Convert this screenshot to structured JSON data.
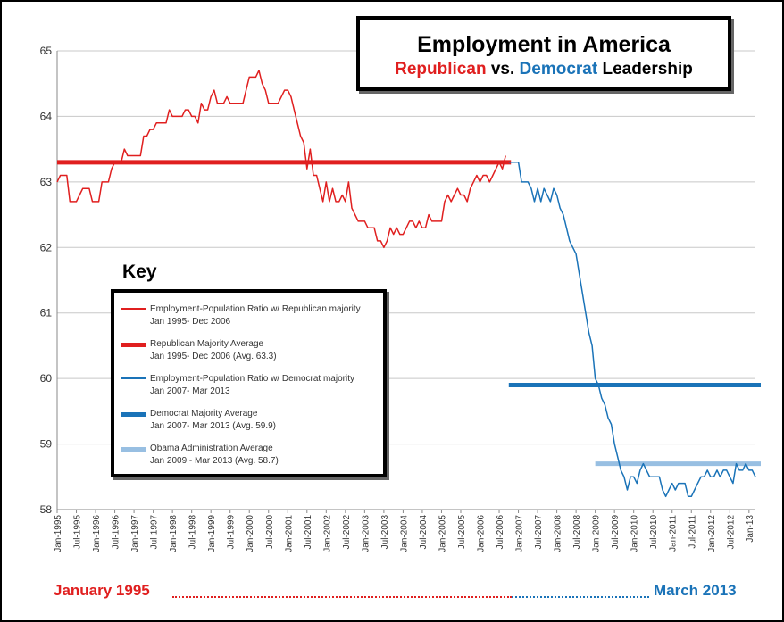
{
  "chart_data": {
    "type": "line",
    "title": "Employment in America",
    "subtitle": {
      "republican": "Republican",
      "vs": " vs. ",
      "democrat": "Democrat",
      "leadership": " Leadership"
    },
    "xlabel": "",
    "ylabel": "",
    "ylim": [
      58,
      65
    ],
    "grid": true,
    "y_ticks": [
      "58",
      "59",
      "60",
      "61",
      "62",
      "63",
      "64",
      "65"
    ],
    "x_tick_labels": [
      "Jan-1995",
      "Jul-1995",
      "Jan-1996",
      "Jul-1996",
      "Jan-1997",
      "Jul-1997",
      "Jan-1998",
      "Jul-1998",
      "Jan-1999",
      "Jul-1999",
      "Jan-2000",
      "Jul-2000",
      "Jan-2001",
      "Jul-2001",
      "Jan-2002",
      "Jul-2002",
      "Jan-2003",
      "Jul-2003",
      "Jan-2004",
      "Jul-2004",
      "Jan-2005",
      "Jul-2005",
      "Jan-2006",
      "Jul-2006",
      "Jan-2007",
      "Jul-2007",
      "Jan-2008",
      "Jul-2008",
      "Jan-2009",
      "Jul-2009",
      "Jan-2010",
      "Jul-2010",
      "Jan-2011",
      "Jul-2011",
      "Jan-2012",
      "Jul-2012",
      "Jan-13"
    ],
    "x_months_total": 219,
    "series": [
      {
        "name": "Employment-Population Ratio w/ Republican majority",
        "color": "#e01f1f",
        "kind": "line",
        "anchors": [
          [
            0,
            63.0
          ],
          [
            1,
            63.1
          ],
          [
            3,
            63.1
          ],
          [
            4,
            62.7
          ],
          [
            5,
            62.7
          ],
          [
            7,
            62.8
          ],
          [
            8,
            62.9
          ],
          [
            9,
            62.9
          ],
          [
            11,
            62.7
          ],
          [
            12,
            62.7
          ],
          [
            14,
            63.0
          ],
          [
            16,
            63.0
          ],
          [
            17,
            63.2
          ],
          [
            18,
            63.3
          ],
          [
            21,
            63.5
          ],
          [
            22,
            63.4
          ],
          [
            25,
            63.4
          ],
          [
            27,
            63.7
          ],
          [
            29,
            63.8
          ],
          [
            31,
            63.9
          ],
          [
            33,
            63.9
          ],
          [
            35,
            64.1
          ],
          [
            36,
            64.0
          ],
          [
            39,
            64.0
          ],
          [
            40,
            64.1
          ],
          [
            42,
            64.0
          ],
          [
            43,
            64.0
          ],
          [
            44,
            63.9
          ],
          [
            45,
            64.2
          ],
          [
            46,
            64.1
          ],
          [
            48,
            64.3
          ],
          [
            49,
            64.4
          ],
          [
            50,
            64.2
          ],
          [
            52,
            64.2
          ],
          [
            53,
            64.3
          ],
          [
            54,
            64.2
          ],
          [
            57,
            64.2
          ],
          [
            59,
            64.4
          ],
          [
            60,
            64.6
          ],
          [
            62,
            64.6
          ],
          [
            63,
            64.7
          ],
          [
            64,
            64.5
          ],
          [
            65,
            64.4
          ],
          [
            66,
            64.2
          ],
          [
            69,
            64.2
          ],
          [
            70,
            64.3
          ],
          [
            71,
            64.4
          ],
          [
            72,
            64.4
          ],
          [
            73,
            64.3
          ],
          [
            74,
            64.1
          ],
          [
            75,
            63.9
          ],
          [
            76,
            63.7
          ],
          [
            77,
            63.6
          ],
          [
            78,
            63.2
          ],
          [
            79,
            63.5
          ],
          [
            80,
            63.1
          ],
          [
            82,
            62.9
          ],
          [
            83,
            62.7
          ],
          [
            84,
            63.0
          ],
          [
            85,
            62.7
          ],
          [
            86,
            62.9
          ],
          [
            87,
            62.7
          ],
          [
            88,
            62.7
          ],
          [
            89,
            62.8
          ],
          [
            90,
            62.7
          ],
          [
            91,
            63.0
          ],
          [
            92,
            62.6
          ],
          [
            93,
            62.5
          ],
          [
            94,
            62.4
          ],
          [
            96,
            62.4
          ],
          [
            97,
            62.3
          ],
          [
            98,
            62.3
          ],
          [
            100,
            62.1
          ],
          [
            101,
            62.1
          ],
          [
            102,
            62.0
          ],
          [
            103,
            62.1
          ],
          [
            104,
            62.3
          ],
          [
            105,
            62.2
          ],
          [
            106,
            62.3
          ],
          [
            107,
            62.2
          ],
          [
            108,
            62.2
          ],
          [
            109,
            62.3
          ],
          [
            110,
            62.4
          ],
          [
            111,
            62.4
          ],
          [
            112,
            62.3
          ],
          [
            113,
            62.4
          ],
          [
            114,
            62.3
          ],
          [
            115,
            62.3
          ],
          [
            116,
            62.5
          ],
          [
            117,
            62.4
          ],
          [
            120,
            62.4
          ],
          [
            121,
            62.7
          ],
          [
            122,
            62.8
          ],
          [
            123,
            62.7
          ],
          [
            124,
            62.8
          ],
          [
            125,
            62.9
          ],
          [
            126,
            62.8
          ],
          [
            127,
            62.8
          ],
          [
            128,
            62.7
          ],
          [
            129,
            62.9
          ],
          [
            130,
            63.0
          ],
          [
            131,
            63.1
          ],
          [
            132,
            63.0
          ],
          [
            133,
            63.1
          ],
          [
            134,
            63.1
          ],
          [
            135,
            63.0
          ],
          [
            136,
            63.1
          ],
          [
            137,
            63.2
          ],
          [
            138,
            63.3
          ],
          [
            139,
            63.2
          ],
          [
            140,
            63.4
          ]
        ]
      },
      {
        "name": "Republican Majority Average",
        "color": "#e01f1f",
        "kind": "average",
        "value": 63.3,
        "x_range": [
          0,
          140
        ]
      },
      {
        "name": "Employment-Population Ratio w/ Democrat majority",
        "color": "#1a73b8",
        "kind": "line",
        "anchors": [
          [
            141,
            63.3
          ],
          [
            144,
            63.3
          ],
          [
            145,
            63.0
          ],
          [
            147,
            63.0
          ],
          [
            148,
            62.9
          ],
          [
            149,
            62.7
          ],
          [
            150,
            62.9
          ],
          [
            151,
            62.7
          ],
          [
            152,
            62.9
          ],
          [
            153,
            62.8
          ],
          [
            154,
            62.7
          ],
          [
            155,
            62.9
          ],
          [
            156,
            62.8
          ],
          [
            157,
            62.6
          ],
          [
            158,
            62.5
          ],
          [
            159,
            62.3
          ],
          [
            160,
            62.1
          ],
          [
            161,
            62.0
          ],
          [
            162,
            61.9
          ],
          [
            163,
            61.6
          ],
          [
            164,
            61.3
          ],
          [
            165,
            61.0
          ],
          [
            166,
            60.7
          ],
          [
            167,
            60.5
          ],
          [
            168,
            60.0
          ],
          [
            169,
            59.9
          ],
          [
            170,
            59.7
          ],
          [
            171,
            59.6
          ],
          [
            172,
            59.4
          ],
          [
            173,
            59.3
          ],
          [
            174,
            59.0
          ],
          [
            175,
            58.8
          ],
          [
            176,
            58.6
          ],
          [
            177,
            58.5
          ],
          [
            178,
            58.3
          ],
          [
            179,
            58.5
          ],
          [
            180,
            58.5
          ],
          [
            181,
            58.4
          ],
          [
            182,
            58.6
          ],
          [
            183,
            58.7
          ],
          [
            184,
            58.6
          ],
          [
            185,
            58.5
          ],
          [
            186,
            58.5
          ],
          [
            187,
            58.5
          ],
          [
            188,
            58.5
          ],
          [
            189,
            58.3
          ],
          [
            190,
            58.2
          ],
          [
            191,
            58.3
          ],
          [
            192,
            58.4
          ],
          [
            193,
            58.3
          ],
          [
            194,
            58.4
          ],
          [
            195,
            58.4
          ],
          [
            196,
            58.4
          ],
          [
            197,
            58.2
          ],
          [
            198,
            58.2
          ],
          [
            199,
            58.3
          ],
          [
            200,
            58.4
          ],
          [
            201,
            58.5
          ],
          [
            202,
            58.5
          ],
          [
            203,
            58.6
          ],
          [
            204,
            58.5
          ],
          [
            205,
            58.5
          ],
          [
            206,
            58.6
          ],
          [
            207,
            58.5
          ],
          [
            208,
            58.6
          ],
          [
            209,
            58.6
          ],
          [
            210,
            58.5
          ],
          [
            211,
            58.4
          ],
          [
            212,
            58.7
          ],
          [
            213,
            58.6
          ],
          [
            214,
            58.6
          ],
          [
            215,
            58.7
          ],
          [
            216,
            58.6
          ],
          [
            217,
            58.6
          ],
          [
            218,
            58.5
          ]
        ]
      },
      {
        "name": "Democrat Majority Average",
        "color": "#1a73b8",
        "kind": "average",
        "value": 59.9,
        "x_range": [
          141,
          218
        ]
      },
      {
        "name": "Obama Administration Average",
        "color": "#98bfe2",
        "kind": "average",
        "value": 58.7,
        "x_range": [
          168,
          218
        ]
      }
    ]
  },
  "key": {
    "heading": "Key",
    "items": [
      {
        "line1": "Employment-Population Ratio w/ Republican majority",
        "line2": "Jan 1995- Dec 2006",
        "color": "#e01f1f",
        "style": "thin"
      },
      {
        "line1": "Republican Majority Average",
        "line2": "Jan 1995- Dec 2006 (Avg. 63.3)",
        "color": "#e01f1f",
        "style": "thick"
      },
      {
        "line1": "Employment-Population Ratio w/ Democrat majority",
        "line2": "Jan 2007- Mar 2013",
        "color": "#1a73b8",
        "style": "thin"
      },
      {
        "line1": "Democrat Majority Average",
        "line2": "Jan 2007- Mar 2013 (Avg. 59.9)",
        "color": "#1a73b8",
        "style": "thick"
      },
      {
        "line1": "Obama Administration Average",
        "line2": "Jan 2009 - Mar 2013 (Avg. 58.7)",
        "color": "#98bfe2",
        "style": "thick"
      }
    ]
  },
  "footer": {
    "start_label": "January 1995",
    "end_label": "March 2013"
  }
}
